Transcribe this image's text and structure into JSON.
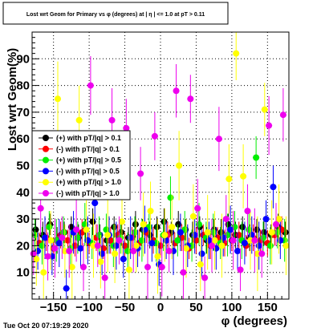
{
  "colors": {
    "background": "#ffffff",
    "frame": "#000000",
    "grid": "#000000"
  },
  "footer": {
    "timestamp": "Tue Oct 20 07:19:29 2020"
  },
  "chart_data": {
    "type": "scatter",
    "title": "Lost wrt Geom for Primary vs φ (degrees) at | η | <= 1.0 at pT > 0.11",
    "xlabel": "φ (degrees)",
    "ylabel": "Lost wrt Geom(%)",
    "xlim": [
      -180,
      180
    ],
    "ylim": [
      0,
      100
    ],
    "x_ticks": [
      -150,
      -100,
      -50,
      0,
      50,
      100,
      150
    ],
    "y_ticks": [
      10,
      20,
      30,
      40,
      50,
      60,
      70,
      80,
      90
    ],
    "grid": true,
    "legend_position": "left",
    "series": [
      {
        "name": "(+) with pT/|q| > 0.1",
        "color": "#000000",
        "x": [
          -175,
          -165,
          -155,
          -145,
          -135,
          -125,
          -115,
          -105,
          -95,
          -85,
          -75,
          -65,
          -55,
          -45,
          -35,
          -25,
          -15,
          -5,
          5,
          15,
          25,
          35,
          45,
          55,
          65,
          75,
          85,
          95,
          105,
          115,
          125,
          135,
          145,
          155,
          165,
          175
        ],
        "y": [
          26,
          24,
          28,
          22,
          25,
          27,
          23,
          26,
          29,
          24,
          22,
          27,
          25,
          23,
          28,
          26,
          24,
          27,
          29,
          25,
          28,
          26,
          24,
          27,
          22,
          26,
          25,
          28,
          24,
          27,
          23,
          26,
          25,
          24,
          27,
          25
        ],
        "err": [
          4,
          5,
          4,
          5,
          4,
          4,
          5,
          4,
          5,
          4,
          5,
          4,
          5,
          4,
          5,
          4,
          5,
          4,
          5,
          4,
          5,
          4,
          5,
          4,
          5,
          4,
          5,
          4,
          5,
          4,
          5,
          4,
          5,
          4,
          5,
          4
        ]
      },
      {
        "name": "(-) with pT/|q| > 0.1",
        "color": "#ff0000",
        "x": [
          -170,
          -160,
          -150,
          -140,
          -130,
          -120,
          -110,
          -100,
          -90,
          -80,
          -70,
          -60,
          -50,
          -40,
          -30,
          -20,
          -10,
          0,
          10,
          20,
          30,
          40,
          50,
          60,
          70,
          80,
          90,
          100,
          110,
          120,
          130,
          140,
          150,
          160,
          170
        ],
        "y": [
          21,
          23,
          19,
          24,
          22,
          20,
          25,
          21,
          23,
          19,
          22,
          24,
          20,
          23,
          21,
          25,
          22,
          20,
          24,
          21,
          23,
          19,
          22,
          24,
          20,
          23,
          21,
          22,
          24,
          20,
          23,
          22,
          21,
          24,
          26
        ],
        "err": [
          4,
          5,
          4,
          5,
          4,
          4,
          5,
          4,
          5,
          4,
          5,
          4,
          5,
          4,
          5,
          4,
          5,
          4,
          5,
          4,
          5,
          4,
          5,
          4,
          5,
          4,
          5,
          4,
          5,
          4,
          5,
          4,
          5,
          4,
          5
        ]
      },
      {
        "name": "(+) with pT/|q| > 0.5",
        "color": "#00ee00",
        "x": [
          -176,
          -166,
          -156,
          -146,
          -136,
          -126,
          -116,
          -106,
          -96,
          -86,
          -76,
          -66,
          -56,
          -46,
          -36,
          -26,
          -16,
          -6,
          4,
          14,
          24,
          34,
          44,
          54,
          64,
          74,
          84,
          94,
          104,
          114,
          124,
          134,
          144,
          154,
          164,
          174
        ],
        "y": [
          24,
          20,
          27,
          22,
          25,
          19,
          23,
          28,
          21,
          24,
          26,
          20,
          23,
          18,
          25,
          22,
          27,
          21,
          24,
          38,
          22,
          26,
          20,
          28,
          23,
          25,
          21,
          24,
          27,
          22,
          26,
          53,
          23,
          20,
          25,
          22
        ],
        "err": [
          6,
          7,
          6,
          8,
          6,
          7,
          6,
          8,
          6,
          7,
          6,
          8,
          6,
          7,
          6,
          8,
          6,
          7,
          6,
          8,
          6,
          7,
          6,
          8,
          6,
          7,
          6,
          8,
          6,
          7,
          6,
          8,
          6,
          7,
          6,
          8
        ]
      },
      {
        "name": "(-) with pT/|q| > 0.5",
        "color": "#0000ff",
        "x": [
          -172,
          -162,
          -152,
          -142,
          -132,
          -122,
          -112,
          -102,
          -92,
          -82,
          -72,
          -62,
          -52,
          -42,
          -32,
          -22,
          -12,
          -2,
          8,
          18,
          28,
          38,
          48,
          58,
          68,
          78,
          88,
          98,
          108,
          118,
          128,
          138,
          148,
          158,
          168
        ],
        "y": [
          18,
          23,
          16,
          21,
          4,
          25,
          19,
          22,
          36,
          17,
          24,
          20,
          15,
          23,
          19,
          26,
          21,
          13,
          22,
          18,
          25,
          20,
          24,
          17,
          22,
          19,
          23,
          26,
          18,
          21,
          24,
          20,
          30,
          42,
          22
        ],
        "err": [
          7,
          8,
          7,
          9,
          7,
          8,
          7,
          9,
          7,
          8,
          7,
          9,
          7,
          8,
          7,
          9,
          7,
          8,
          7,
          9,
          7,
          8,
          7,
          9,
          7,
          8,
          7,
          9,
          7,
          8,
          7,
          9,
          7,
          8,
          7
        ]
      },
      {
        "name": "(+) with pT/|q| > 1.0",
        "color": "#ffff00",
        "x": [
          -174,
          -164,
          -154,
          -144,
          -134,
          -124,
          -114,
          -104,
          -94,
          -84,
          -74,
          -64,
          -54,
          -44,
          -34,
          -24,
          -14,
          -4,
          6,
          16,
          26,
          36,
          46,
          56,
          66,
          76,
          86,
          96,
          106,
          116,
          126,
          136,
          146,
          156,
          166,
          176
        ],
        "y": [
          15,
          10,
          22,
          75,
          18,
          12,
          67,
          26,
          20,
          14,
          24,
          17,
          29,
          11,
          20,
          28,
          33,
          16,
          24,
          27,
          50,
          19,
          31,
          13,
          25,
          22,
          20,
          45,
          92,
          46,
          22,
          17,
          71,
          25,
          30,
          20
        ],
        "err": [
          10,
          12,
          11,
          14,
          10,
          12,
          13,
          11,
          12,
          10,
          14,
          11,
          12,
          13,
          10,
          12,
          11,
          14,
          10,
          12,
          13,
          11,
          12,
          10,
          14,
          11,
          12,
          13,
          10,
          12,
          11,
          14,
          10,
          12,
          13,
          11
        ]
      },
      {
        "name": "(-) with pT/|q| > 1.0",
        "color": "#ee00ee",
        "x": [
          -178,
          -168,
          -158,
          -148,
          -138,
          -128,
          -118,
          -108,
          -98,
          -88,
          -78,
          -68,
          -58,
          -48,
          -38,
          -28,
          -18,
          -8,
          2,
          12,
          22,
          32,
          42,
          52,
          62,
          72,
          82,
          92,
          102,
          112,
          122,
          132,
          142,
          152,
          162,
          172
        ],
        "y": [
          17,
          34,
          16,
          19,
          23,
          18,
          26,
          12,
          80,
          20,
          8,
          67,
          22,
          64,
          18,
          47,
          12,
          61,
          12,
          18,
          78,
          10,
          75,
          34,
          8,
          20,
          60,
          30,
          22,
          11,
          33,
          22,
          17,
          65,
          28,
          69
        ],
        "err": [
          8,
          10,
          9,
          11,
          8,
          10,
          12,
          9,
          11,
          8,
          10,
          12,
          9,
          11,
          8,
          10,
          12,
          9,
          11,
          8,
          10,
          12,
          9,
          11,
          8,
          10,
          12,
          9,
          11,
          8,
          10,
          12,
          9,
          11,
          8,
          10
        ]
      }
    ]
  }
}
